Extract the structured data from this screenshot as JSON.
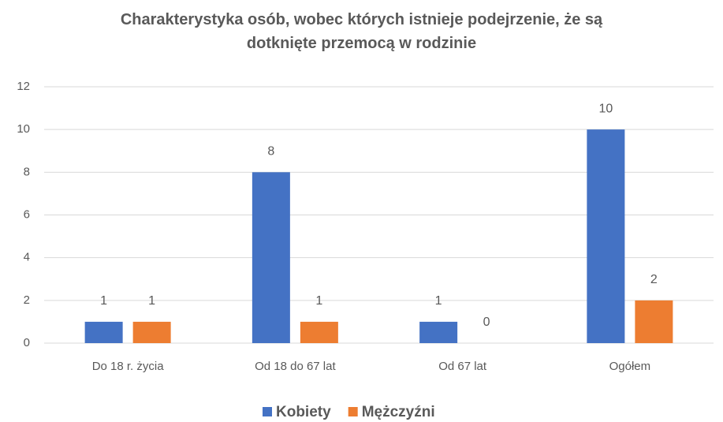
{
  "chart_data": {
    "type": "bar",
    "title": "Charakterystyka osób, wobec których istnieje podejrzenie, że są dotknięte przemocą w rodzinie",
    "categories": [
      "Do 18 r. życia",
      "Od 18 do 67 lat",
      "Od 67 lat",
      "Ogółem"
    ],
    "series": [
      {
        "name": "Kobiety",
        "color": "#4472c4",
        "values": [
          1,
          8,
          1,
          10
        ]
      },
      {
        "name": "Mężczyźni",
        "color": "#ed7d31",
        "values": [
          1,
          1,
          0,
          2
        ]
      }
    ],
    "ylim": [
      0,
      12
    ],
    "yticks": [
      0,
      2,
      4,
      6,
      8,
      10,
      12
    ],
    "grid": true,
    "legend": "bottom"
  }
}
